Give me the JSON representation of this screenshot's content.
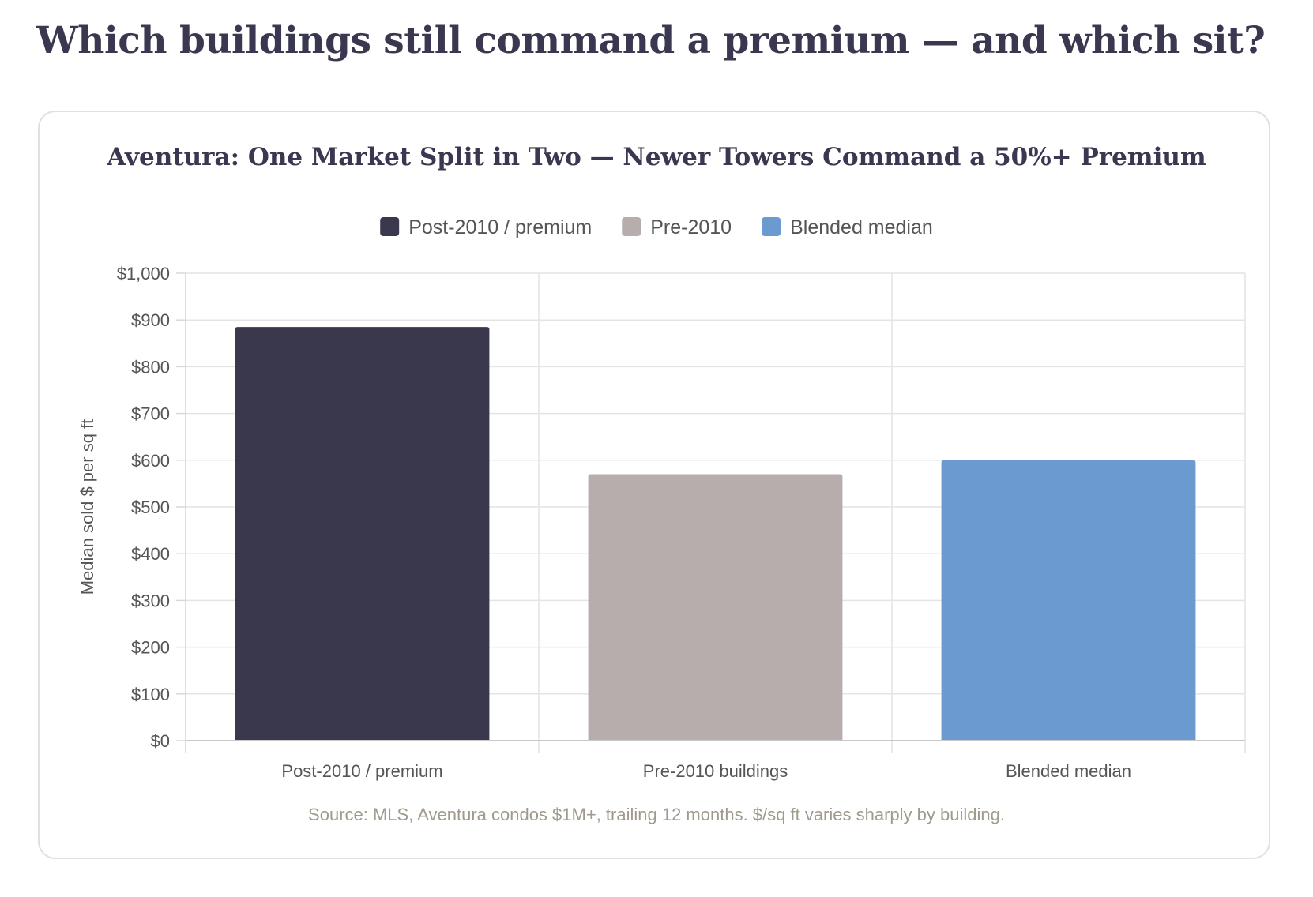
{
  "page": {
    "heading": "Which buildings still command a premium — and which sit?"
  },
  "chart_data": {
    "type": "bar",
    "title": "Aventura: One Market Split in Two — Newer Towers Command a 50%+ Premium",
    "categories": [
      "Post-2010 / premium",
      "Pre-2010 buildings",
      "Blended median"
    ],
    "values": [
      885,
      570,
      600
    ],
    "colors": [
      "#3a384d",
      "#b7adad",
      "#6a9ad0"
    ],
    "legend": [
      {
        "label": "Post-2010 / premium",
        "color": "#3a384d"
      },
      {
        "label": "Pre-2010",
        "color": "#b7adad"
      },
      {
        "label": "Blended median",
        "color": "#6a9ad0"
      }
    ],
    "legend_position": "top-center",
    "ylabel": "Median sold $ per sq ft",
    "xlabel": "",
    "ylim": [
      0,
      1000
    ],
    "yticks": [
      0,
      100,
      200,
      300,
      400,
      500,
      600,
      700,
      800,
      900,
      1000
    ],
    "ytick_labels": [
      "$0",
      "$100",
      "$200",
      "$300",
      "$400",
      "$500",
      "$600",
      "$700",
      "$800",
      "$900",
      "$1,000"
    ],
    "grid": true,
    "source": "Source: MLS, Aventura condos $1M+, trailing 12 months. $/sq ft varies sharply by building."
  }
}
